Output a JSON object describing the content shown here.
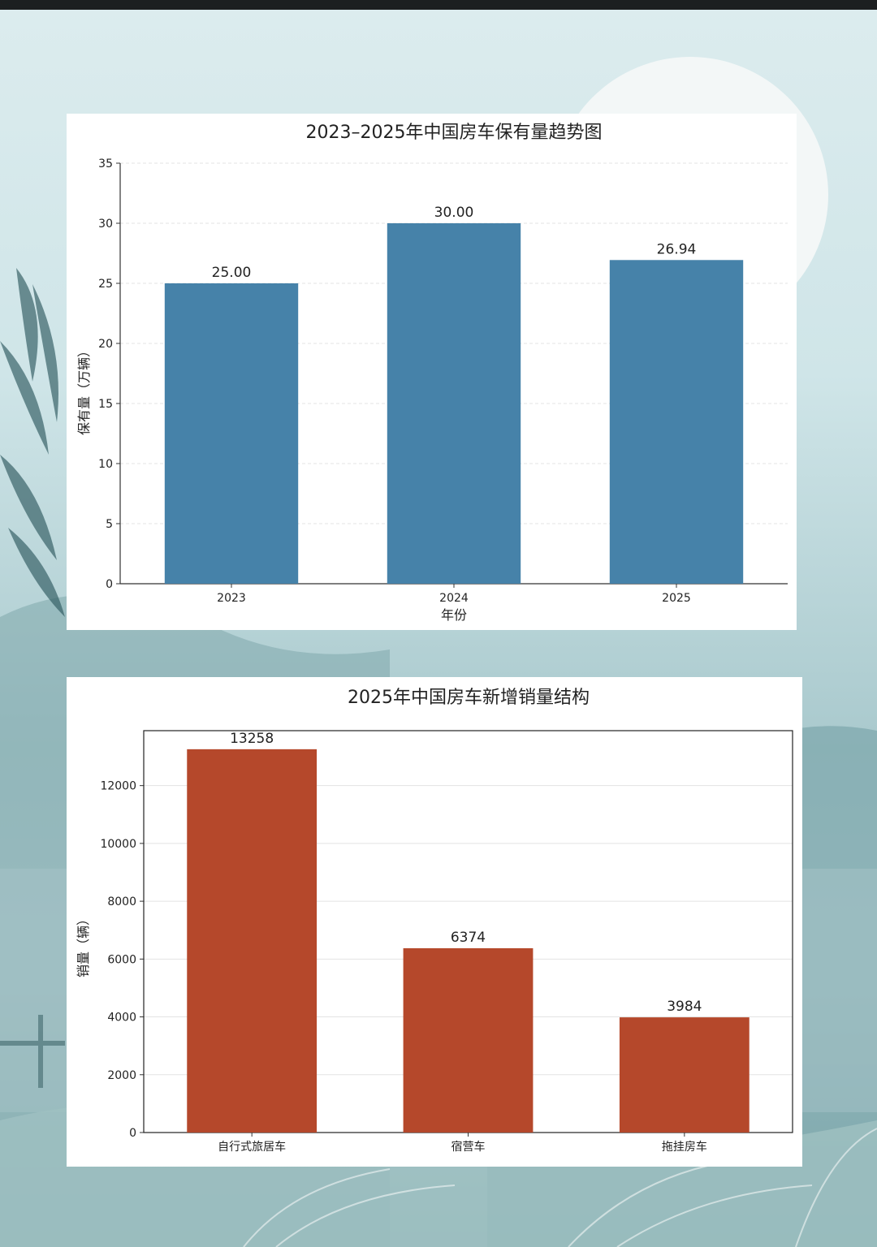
{
  "chart_data": [
    {
      "type": "bar",
      "title": "2023–2025年中国房车保有量趋势图",
      "xlabel": "年份",
      "ylabel": "保有量（万辆）",
      "categories": [
        "2023",
        "2024",
        "2025"
      ],
      "values": [
        25.0,
        30.0,
        26.94
      ],
      "value_labels": [
        "25.00",
        "30.00",
        "26.94"
      ],
      "ylim": [
        0,
        35
      ],
      "yticks": [
        0,
        5,
        10,
        15,
        20,
        25,
        30,
        35
      ],
      "grid": true,
      "color": "#4682a9"
    },
    {
      "type": "bar",
      "title": "2025年中国房车新增销量结构",
      "xlabel": "",
      "ylabel": "销量（辆）",
      "categories": [
        "自行式旅居车",
        "宿营车",
        "拖挂房车"
      ],
      "values": [
        13258,
        6374,
        3984
      ],
      "value_labels": [
        "13258",
        "6374",
        "3984"
      ],
      "ylim": [
        0,
        13900
      ],
      "yticks": [
        0,
        2000,
        4000,
        6000,
        8000,
        10000,
        12000
      ],
      "grid": true,
      "color": "#b5482b"
    }
  ]
}
